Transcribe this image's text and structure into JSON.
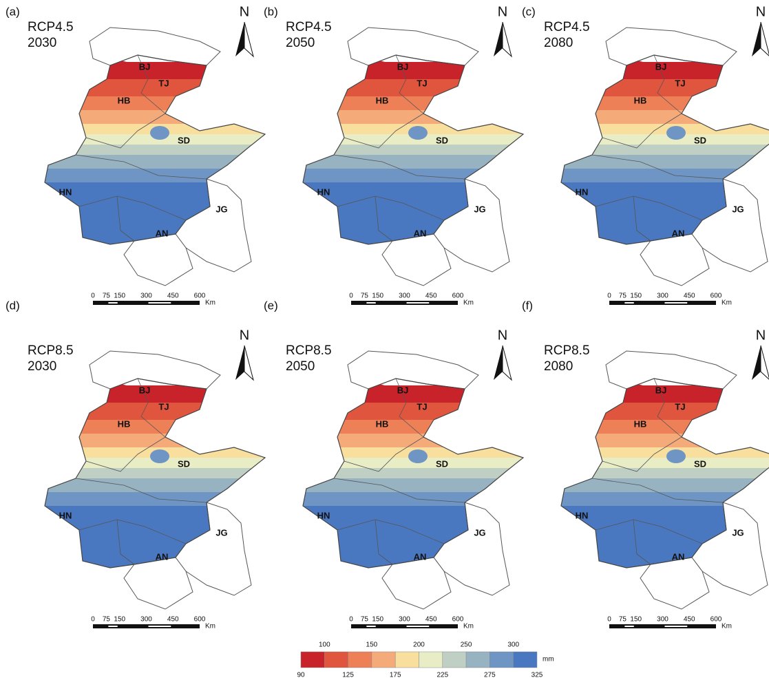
{
  "panels": [
    {
      "label": "(a)",
      "scenario": "RCP4.5",
      "year": "2030"
    },
    {
      "label": "(b)",
      "scenario": "RCP4.5",
      "year": "2050"
    },
    {
      "label": "(c)",
      "scenario": "RCP4.5",
      "year": "2080"
    },
    {
      "label": "(d)",
      "scenario": "RCP8.5",
      "year": "2030"
    },
    {
      "label": "(e)",
      "scenario": "RCP8.5",
      "year": "2050"
    },
    {
      "label": "(f)",
      "scenario": "RCP8.5",
      "year": "2080"
    }
  ],
  "north": "N",
  "regions": [
    "BJ",
    "TJ",
    "HB",
    "SD",
    "HN",
    "AN",
    "JG"
  ],
  "scale_bar": {
    "ticks": [
      0,
      75,
      150,
      300,
      450,
      600
    ],
    "unit": "Km"
  },
  "legend": {
    "upper_labels": [
      100,
      150,
      200,
      250,
      300
    ],
    "lower_labels": [
      90,
      125,
      175,
      225,
      275,
      325
    ],
    "unit": "mm",
    "colors": [
      "#c8232b",
      "#e0553d",
      "#ee8058",
      "#f5aa7a",
      "#f9df9e",
      "#e9edc6",
      "#bfcfc3",
      "#97b3c2",
      "#6e95c4",
      "#4a78c0"
    ]
  }
}
